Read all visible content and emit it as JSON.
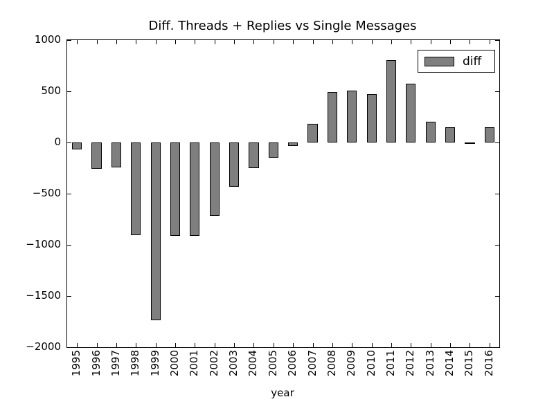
{
  "chart_data": {
    "type": "bar",
    "title": "Diff. Threads + Replies vs Single Messages",
    "xlabel": "year",
    "ylabel": "",
    "categories": [
      "1995",
      "1996",
      "1997",
      "1998",
      "1999",
      "2000",
      "2001",
      "2002",
      "2003",
      "2004",
      "2005",
      "2006",
      "2007",
      "2008",
      "2009",
      "2010",
      "2011",
      "2012",
      "2013",
      "2014",
      "2015",
      "2016"
    ],
    "series": [
      {
        "name": "diff",
        "values": [
          -70,
          -255,
          -240,
          -905,
          -1735,
          -915,
          -915,
          -715,
          -430,
          -250,
          -150,
          -35,
          185,
          490,
          510,
          470,
          805,
          575,
          205,
          150,
          -5,
          150
        ]
      }
    ],
    "ylim": [
      -2000,
      1000
    ],
    "yticks": [
      1000,
      500,
      0,
      -500,
      -1000,
      -1500,
      -2000
    ],
    "ytick_labels": [
      "1000",
      "500",
      "0",
      "−500",
      "−1000",
      "−1500",
      "−2000"
    ],
    "grid": false,
    "legend": {
      "label": "diff",
      "position": "upper right"
    },
    "colors": {
      "bar_fill": "#7f7f7f",
      "bar_edge": "#000000",
      "axes_edge": "#000000",
      "background": "#ffffff"
    }
  }
}
